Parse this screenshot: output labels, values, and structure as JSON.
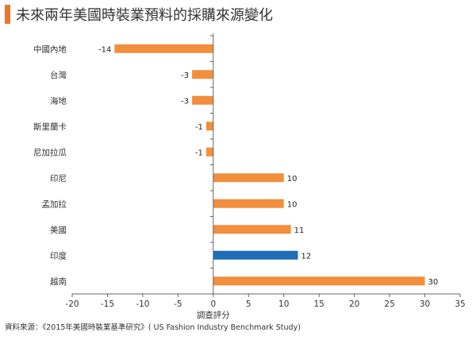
{
  "title": "未來兩年美國時裝業預料的採購來源變化",
  "source": "資料來源：《2015年美國時裝業基準研究》( US Fashion Industry Benchmark Study)",
  "colors": {
    "accent": "#e8772e",
    "bar": "#f28e3c",
    "highlight": "#1f6db6"
  },
  "chart_data": {
    "type": "bar",
    "orientation": "horizontal",
    "title": "未來兩年美國時裝業預料的採購來源變化",
    "xlabel": "調查評分",
    "ylabel": "",
    "xlim": [
      -20,
      35
    ],
    "xticks": [
      -20,
      -15,
      -10,
      -5,
      0,
      5,
      10,
      15,
      20,
      25,
      30,
      35
    ],
    "grid": false,
    "categories": [
      "中國內地",
      "台灣",
      "海地",
      "斯里蘭卡",
      "尼加拉瓜",
      "印尼",
      "孟加拉",
      "美國",
      "印度",
      "越南"
    ],
    "values": [
      -14,
      -3,
      -3,
      -1,
      -1,
      10,
      10,
      11,
      12,
      30
    ],
    "highlight": "印度"
  }
}
